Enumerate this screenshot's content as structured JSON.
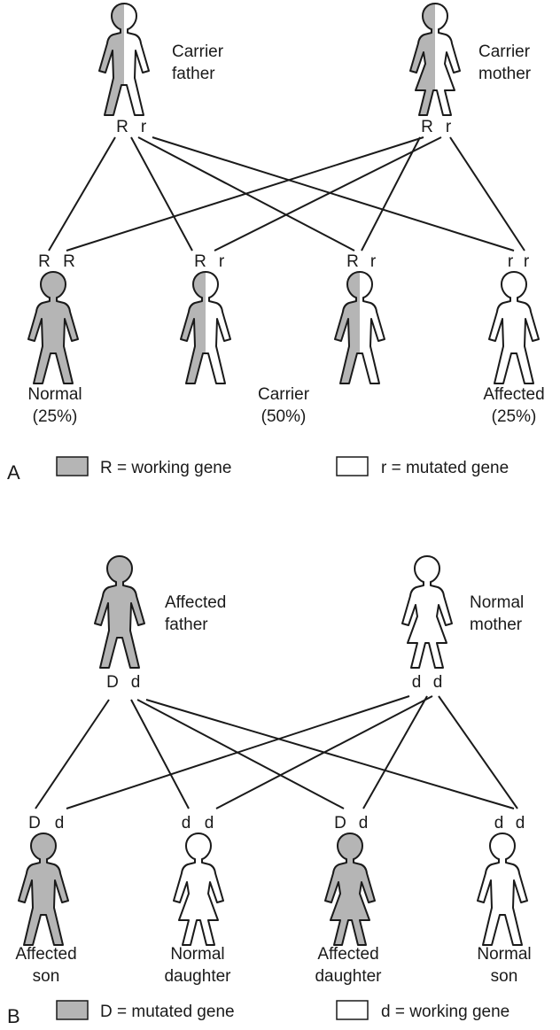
{
  "colors": {
    "working": "#b5b5b5",
    "outline": "#1a1a1a",
    "empty": "#ffffff"
  },
  "panel_a": {
    "letter": "A",
    "father": {
      "line1": "Carrier",
      "line2": "father",
      "allele1": "R",
      "allele2": "r"
    },
    "mother": {
      "line1": "Carrier",
      "line2": "mother",
      "allele1": "R",
      "allele2": "r"
    },
    "children": [
      {
        "allele1": "R",
        "allele2": "R"
      },
      {
        "allele1": "R",
        "allele2": "r"
      },
      {
        "allele1": "R",
        "allele2": "r"
      },
      {
        "allele1": "r",
        "allele2": "r"
      }
    ],
    "outcomes": [
      {
        "line1": "Normal",
        "line2": "(25%)"
      },
      {
        "line1": "Carrier",
        "line2": "(50%)"
      },
      {
        "line1": "Affected",
        "line2": "(25%)"
      }
    ],
    "legend": {
      "filled": "R = working gene",
      "open": "r = mutated gene"
    }
  },
  "panel_b": {
    "letter": "B",
    "father": {
      "line1": "Affected",
      "line2": "father",
      "allele1": "D",
      "allele2": "d"
    },
    "mother": {
      "line1": "Normal",
      "line2": "mother",
      "allele1": "d",
      "allele2": "d"
    },
    "children": [
      {
        "allele1": "D",
        "allele2": "d",
        "line1": "Affected",
        "line2": "son"
      },
      {
        "allele1": "d",
        "allele2": "d",
        "line1": "Normal",
        "line2": "daughter"
      },
      {
        "allele1": "D",
        "allele2": "d",
        "line1": "Affected",
        "line2": "daughter"
      },
      {
        "allele1": "d",
        "allele2": "d",
        "line1": "Normal",
        "line2": "son"
      }
    ],
    "legend": {
      "filled": "D = mutated gene",
      "open": "d = working gene"
    }
  }
}
